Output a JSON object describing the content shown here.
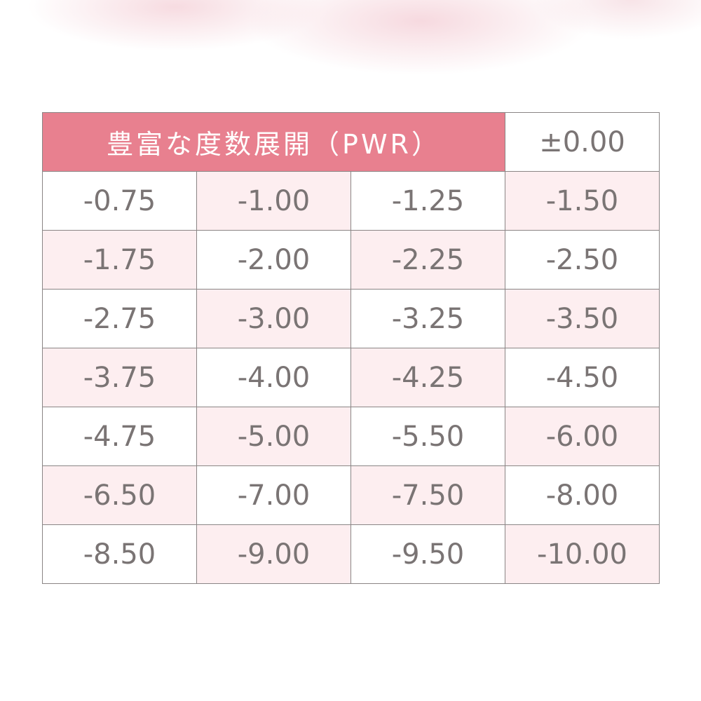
{
  "colors": {
    "header": "#e8808f",
    "cell_pink": "#fdeef0",
    "text": "#7a7474",
    "border": "#8a8585"
  },
  "header": {
    "title": "豊富な度数展開（PWR）",
    "first_value": "±0.00"
  },
  "rows": [
    [
      "-0.75",
      "-1.00",
      "-1.25",
      "-1.50"
    ],
    [
      "-1.75",
      "-2.00",
      "-2.25",
      "-2.50"
    ],
    [
      "-2.75",
      "-3.00",
      "-3.25",
      "-3.50"
    ],
    [
      "-3.75",
      "-4.00",
      "-4.25",
      "-4.50"
    ],
    [
      "-4.75",
      "-5.00",
      "-5.50",
      "-6.00"
    ],
    [
      "-6.50",
      "-7.00",
      "-7.50",
      "-8.00"
    ],
    [
      "-8.50",
      "-9.00",
      "-9.50",
      "-10.00"
    ]
  ]
}
